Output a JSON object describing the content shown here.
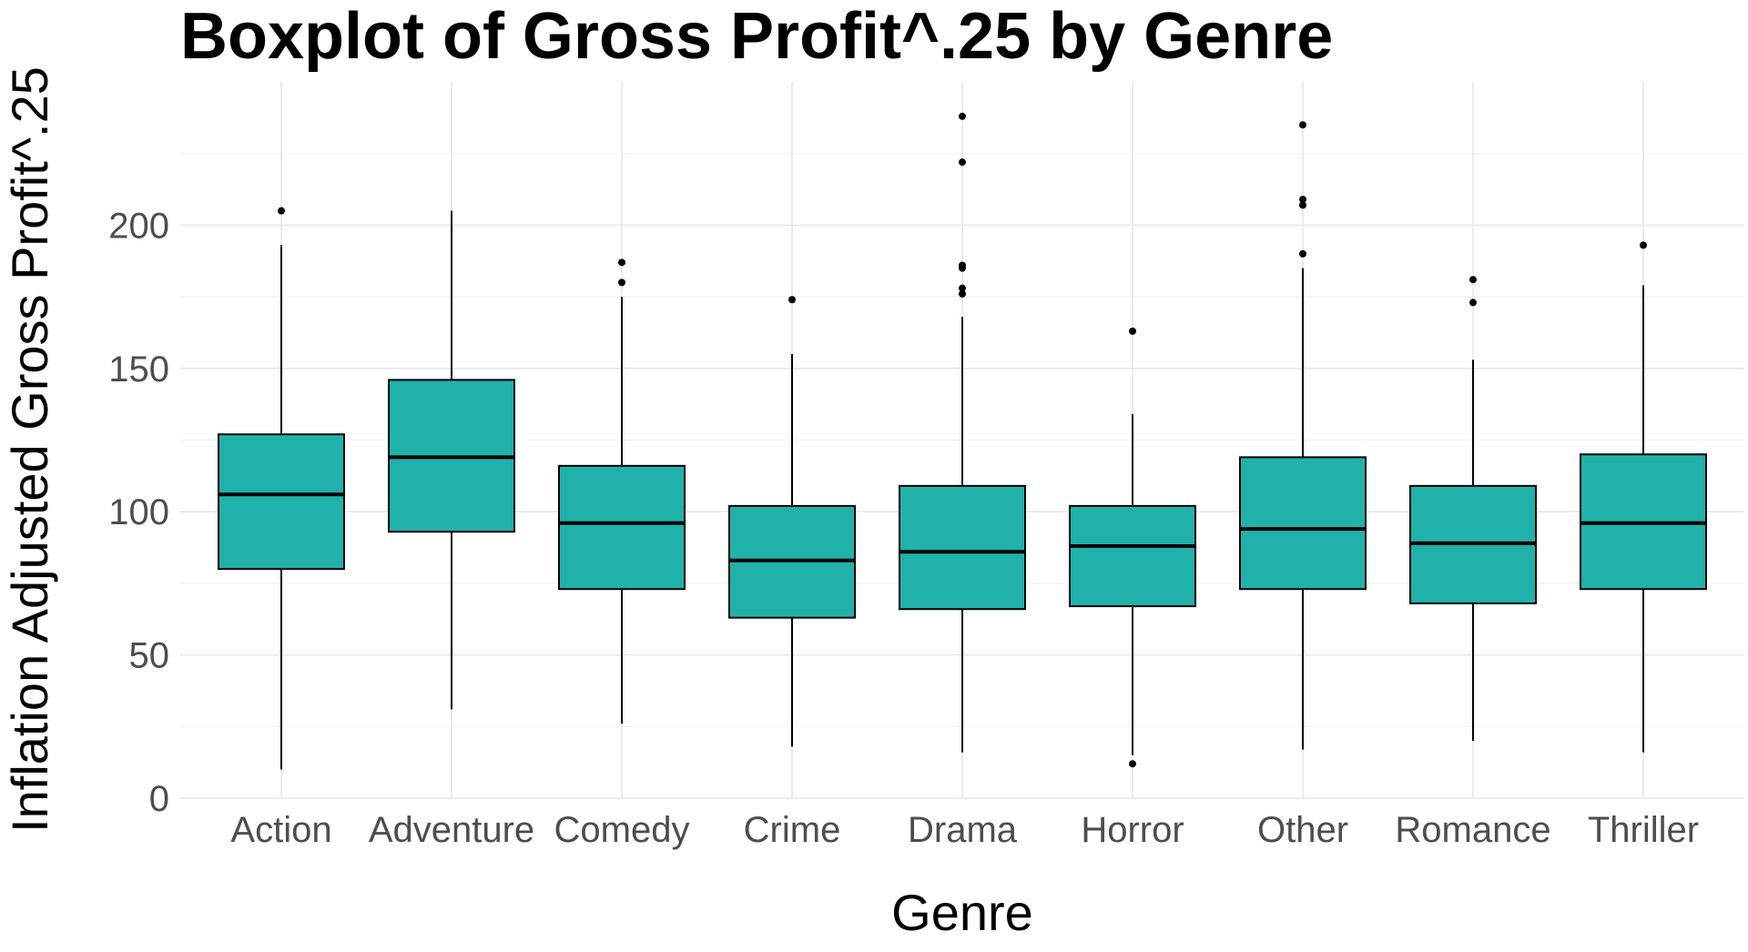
{
  "chart_data": {
    "type": "boxplot",
    "title": "Boxplot of Gross Profit^.25 by Genre",
    "xlabel": "Genre",
    "ylabel": "Inflation Adjusted Gross Profit^.25",
    "ylim": [
      0,
      240
    ],
    "yticks": [
      0,
      50,
      100,
      150,
      200
    ],
    "grid": true,
    "fill_color": "#20B2AA",
    "categories": [
      "Action",
      "Adventure",
      "Comedy",
      "Crime",
      "Drama",
      "Horror",
      "Other",
      "Romance",
      "Thriller"
    ],
    "boxes": [
      {
        "category": "Action",
        "whisker_low": 10,
        "q1": 80,
        "median": 106,
        "q3": 127,
        "whisker_high": 193,
        "outliers": [
          205
        ]
      },
      {
        "category": "Adventure",
        "whisker_low": 31,
        "q1": 93,
        "median": 119,
        "q3": 146,
        "whisker_high": 205,
        "outliers": []
      },
      {
        "category": "Comedy",
        "whisker_low": 26,
        "q1": 73,
        "median": 96,
        "q3": 116,
        "whisker_high": 175,
        "outliers": [
          180,
          187
        ]
      },
      {
        "category": "Crime",
        "whisker_low": 18,
        "q1": 63,
        "median": 83,
        "q3": 102,
        "whisker_high": 155,
        "outliers": [
          174
        ]
      },
      {
        "category": "Drama",
        "whisker_low": 16,
        "q1": 66,
        "median": 86,
        "q3": 109,
        "whisker_high": 168,
        "outliers": [
          176,
          178,
          185,
          186,
          222,
          238
        ]
      },
      {
        "category": "Horror",
        "whisker_low": 15,
        "q1": 67,
        "median": 88,
        "q3": 102,
        "whisker_high": 134,
        "outliers": [
          12,
          163
        ]
      },
      {
        "category": "Other",
        "whisker_low": 17,
        "q1": 73,
        "median": 94,
        "q3": 119,
        "whisker_high": 185,
        "outliers": [
          190,
          207,
          209,
          235
        ]
      },
      {
        "category": "Romance",
        "whisker_low": 20,
        "q1": 68,
        "median": 89,
        "q3": 109,
        "whisker_high": 153,
        "outliers": [
          173,
          181
        ]
      },
      {
        "category": "Thriller",
        "whisker_low": 16,
        "q1": 73,
        "median": 96,
        "q3": 120,
        "whisker_high": 179,
        "outliers": [
          193
        ]
      }
    ]
  }
}
